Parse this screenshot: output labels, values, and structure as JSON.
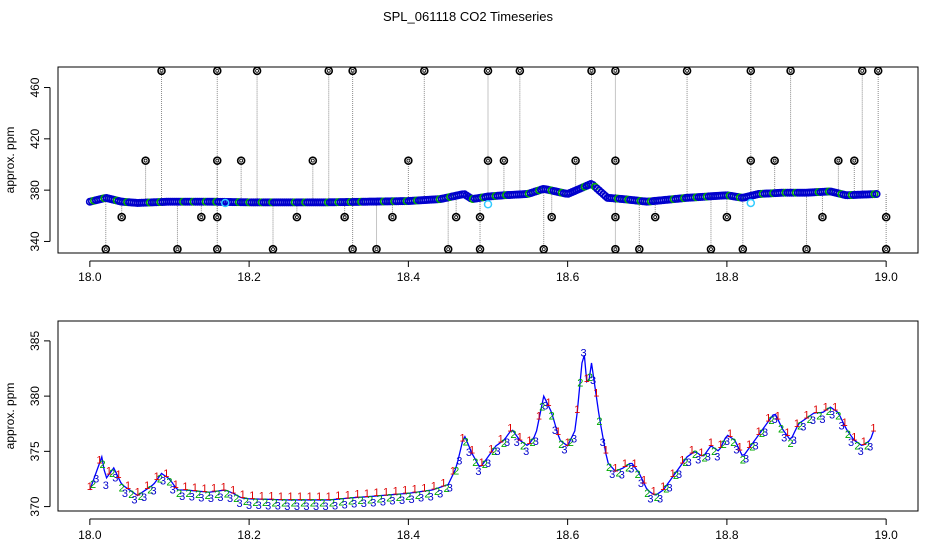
{
  "title": "SPL_061118  CO2 Timeseries",
  "colors": {
    "spike": "#000000",
    "spike_line": "#8c8c8c",
    "raw": "#0000cc",
    "flagged": "#33ccff",
    "s1": "#dd0000",
    "s2": "#00aa00",
    "s3": "#0000cc",
    "line": "#0000ff"
  },
  "chart_data": [
    {
      "type": "scatter",
      "ylabel": "approx. ppm",
      "xlim": [
        17.96,
        19.04
      ],
      "ylim": [
        331,
        476
      ],
      "xticks": [
        18.0,
        18.2,
        18.4,
        18.6,
        18.8,
        19.0
      ],
      "xtick_labels": [
        "18.0",
        "18.2",
        "18.4",
        "18.6",
        "18.8",
        "19.0"
      ],
      "yticks": [
        340,
        380,
        420,
        460
      ],
      "ytick_labels": [
        "340",
        "380",
        "420",
        "460"
      ],
      "baseline": {
        "x": [
          18.0,
          18.02,
          18.04,
          18.06,
          18.1,
          18.15,
          18.2,
          18.25,
          18.3,
          18.33,
          18.35,
          18.4,
          18.44,
          18.47,
          18.48,
          18.5,
          18.52,
          18.55,
          18.57,
          18.6,
          18.63,
          18.65,
          18.67,
          18.7,
          18.75,
          18.8,
          18.82,
          18.84,
          18.87,
          18.9,
          18.93,
          18.95,
          18.99
        ],
        "y": [
          371,
          374,
          371,
          370,
          371,
          371,
          370.5,
          370.5,
          370.5,
          370.8,
          371,
          371.5,
          373,
          377,
          373,
          375,
          376,
          377,
          381,
          377,
          385,
          374,
          373,
          371,
          374,
          376,
          374,
          377,
          378,
          378,
          379,
          376,
          377
        ]
      },
      "spikes_high": [
        18.09,
        18.16,
        18.21,
        18.3,
        18.33,
        18.42,
        18.5,
        18.54,
        18.63,
        18.66,
        18.75,
        18.83,
        18.88,
        18.97,
        18.99
      ],
      "spikes_high_value": 473,
      "spikes_mid": [
        18.07,
        18.16,
        18.19,
        18.28,
        18.4,
        18.5,
        18.52,
        18.61,
        18.66,
        18.83,
        18.86,
        18.94,
        18.96
      ],
      "spikes_mid_value": 403,
      "spikes_low": [
        18.04,
        18.14,
        18.16,
        18.26,
        18.32,
        18.38,
        18.46,
        18.49,
        18.58,
        18.66,
        18.71,
        18.8,
        18.92,
        19.0
      ],
      "spikes_low_value": 359,
      "spikes_bottom": [
        18.02,
        18.11,
        18.16,
        18.23,
        18.33,
        18.36,
        18.45,
        18.49,
        18.57,
        18.66,
        18.69,
        18.78,
        18.82,
        18.9,
        19.0
      ],
      "spikes_bottom_value": 334,
      "flagged": [
        {
          "x": 18.17,
          "y": 370
        },
        {
          "x": 18.5,
          "y": 369
        },
        {
          "x": 18.83,
          "y": 370
        }
      ]
    },
    {
      "type": "line",
      "ylabel": "approx. ppm",
      "xlim": [
        17.96,
        19.04
      ],
      "ylim": [
        369.6,
        386.8
      ],
      "xticks": [
        18.0,
        18.2,
        18.4,
        18.6,
        18.8,
        19.0
      ],
      "xtick_labels": [
        "18.0",
        "18.2",
        "18.4",
        "18.6",
        "18.8",
        "19.0"
      ],
      "yticks": [
        370,
        375,
        380,
        385
      ],
      "ytick_labels": [
        "370",
        "375",
        "380",
        "385"
      ],
      "series_markers": [
        "1",
        "2",
        "3"
      ],
      "x": [
        18.0,
        18.01,
        18.015,
        18.02,
        18.03,
        18.04,
        18.05,
        18.06,
        18.07,
        18.08,
        18.09,
        18.1,
        18.11,
        18.12,
        18.15,
        18.17,
        18.18,
        18.19,
        18.2,
        18.25,
        18.3,
        18.33,
        18.35,
        18.4,
        18.43,
        18.45,
        18.46,
        18.47,
        18.48,
        18.49,
        18.5,
        18.51,
        18.52,
        18.53,
        18.54,
        18.55,
        18.56,
        18.57,
        18.58,
        18.59,
        18.6,
        18.61,
        18.62,
        18.625,
        18.63,
        18.64,
        18.65,
        18.66,
        18.67,
        18.68,
        18.69,
        18.7,
        18.71,
        18.72,
        18.73,
        18.74,
        18.75,
        18.76,
        18.77,
        18.78,
        18.79,
        18.8,
        18.81,
        18.82,
        18.83,
        18.84,
        18.85,
        18.86,
        18.87,
        18.88,
        18.89,
        18.9,
        18.91,
        18.92,
        18.93,
        18.94,
        18.95,
        18.96,
        18.97,
        18.98,
        18.985
      ],
      "y": [
        371.5,
        373.5,
        374.5,
        372.5,
        373.5,
        372,
        371.5,
        371,
        371.5,
        372,
        373,
        372.5,
        371.5,
        371.5,
        371.3,
        371.5,
        371.2,
        370.8,
        370.7,
        370.6,
        370.6,
        370.8,
        370.9,
        371.2,
        371.5,
        372,
        373.5,
        376.5,
        374.8,
        373.5,
        374.5,
        375.5,
        376,
        377,
        376,
        375.5,
        376.5,
        380,
        378.5,
        376,
        375.5,
        377,
        384.5,
        380.5,
        383,
        378,
        374,
        373.2,
        373.5,
        374,
        373,
        371.5,
        371,
        371.5,
        372.5,
        373.5,
        374.5,
        375,
        374.5,
        375.5,
        375,
        376.5,
        376,
        374.5,
        375.5,
        376.5,
        377.5,
        378.5,
        377,
        376,
        377.5,
        378,
        378.5,
        378.5,
        379,
        378.5,
        377,
        376,
        375.5,
        376,
        377
      ]
    }
  ]
}
